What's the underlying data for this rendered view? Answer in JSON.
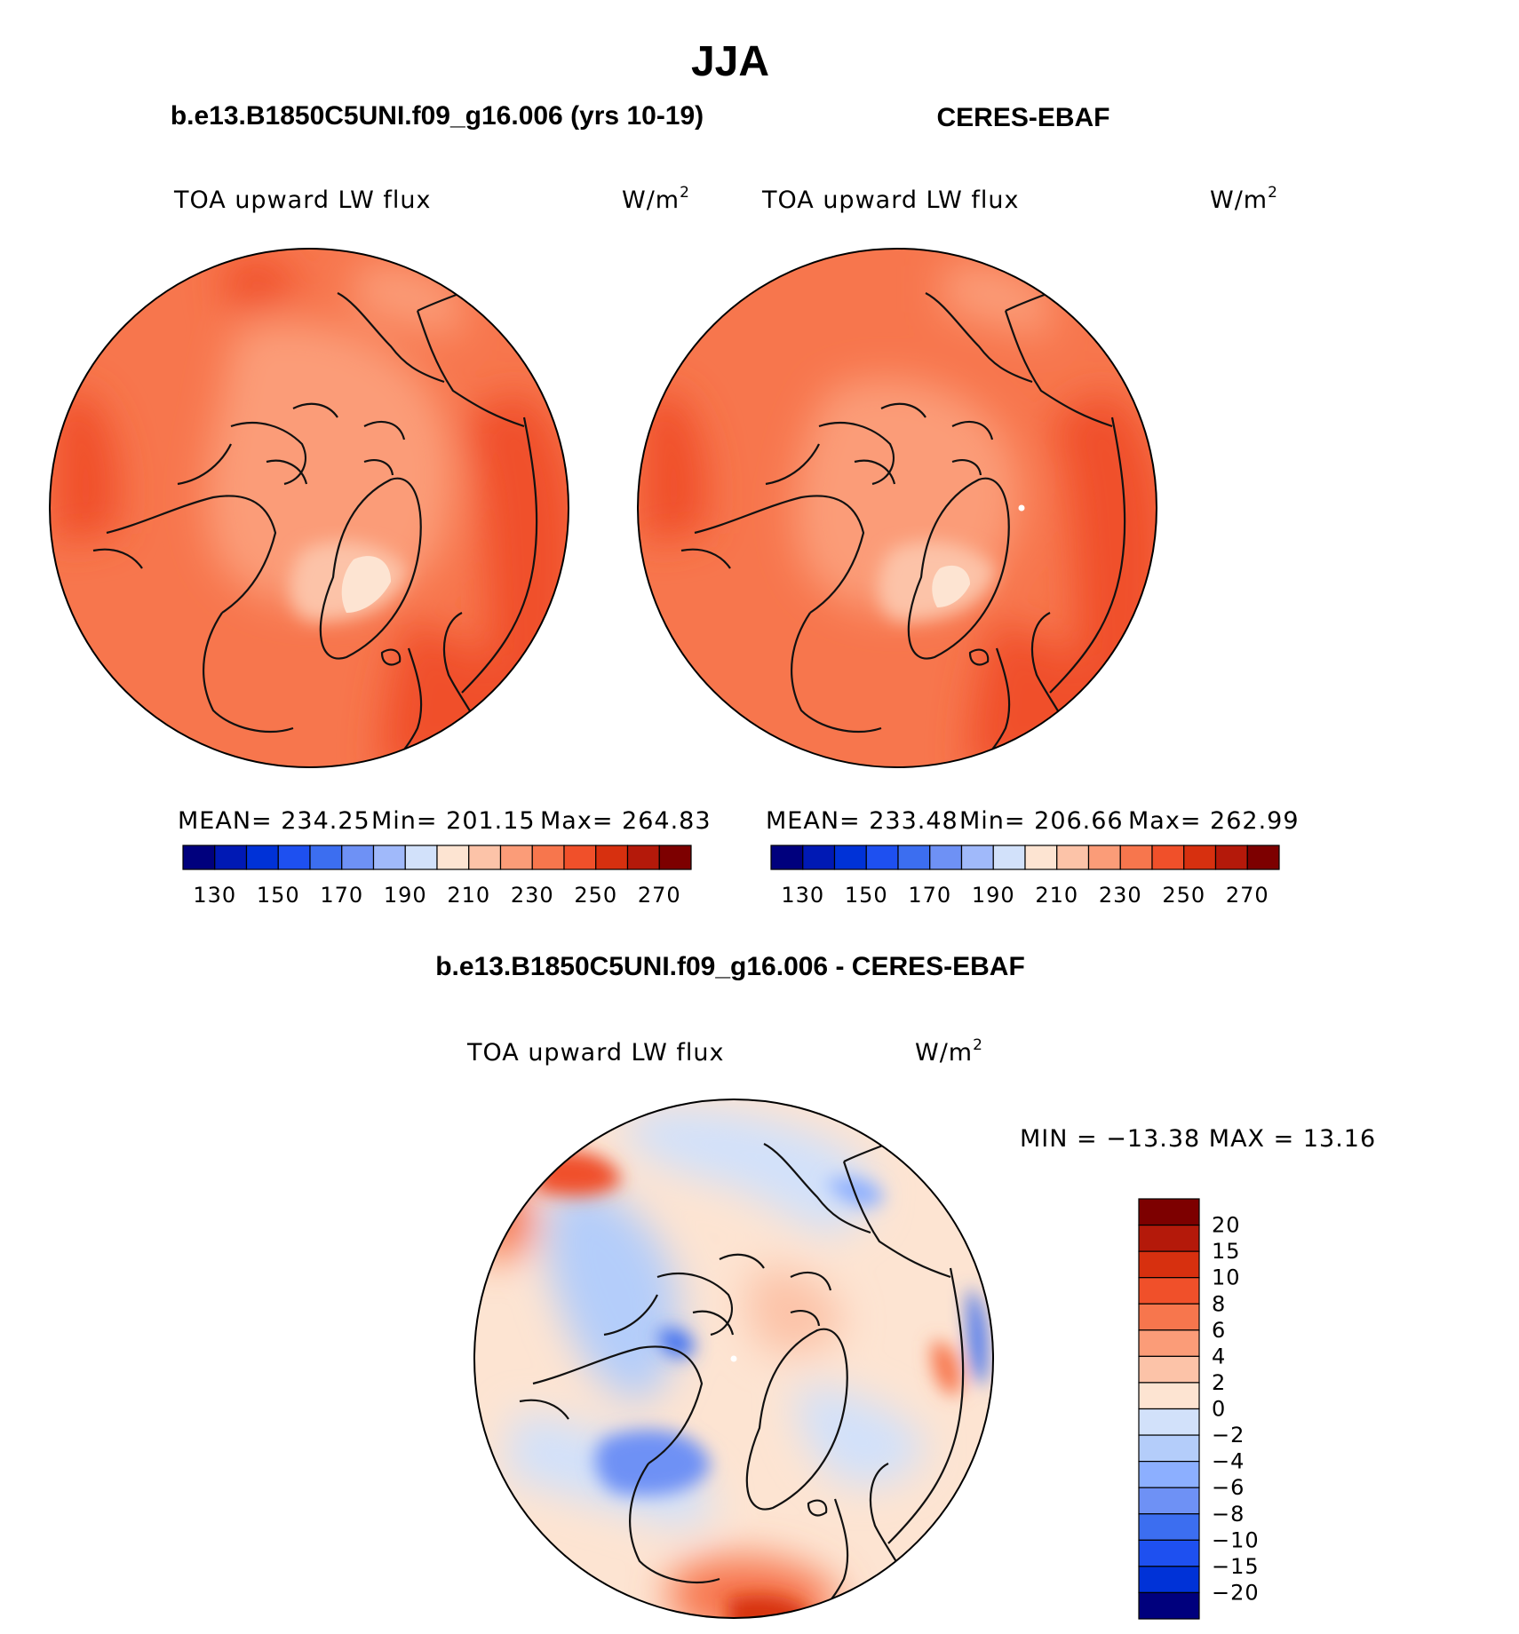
{
  "figure": {
    "season": "JJA",
    "model_title": "b.e13.B1850C5UNI.f09_g16.006 (yrs 10-19)",
    "obs_title": "CERES-EBAF",
    "diff_title": "b.e13.B1850C5UNI.f09_g16.006 - CERES-EBAF"
  },
  "chart_data": [
    {
      "type": "heatmap",
      "projection": "north-polar-stereographic",
      "variable": "TOA upward LW flux",
      "units": "W/m",
      "units_exponent": "2",
      "stats": {
        "mean_label": "MEAN=",
        "mean": "234.25",
        "min_label": "Min=",
        "min": "201.15",
        "max_label": "Max=",
        "max": "264.83"
      },
      "colorbar": {
        "orientation": "horizontal",
        "levels": [
          130,
          140,
          150,
          160,
          170,
          180,
          190,
          200,
          210,
          220,
          230,
          240,
          250,
          260,
          270
        ],
        "tick_labels": [
          "130",
          "150",
          "170",
          "190",
          "210",
          "230",
          "250",
          "270"
        ],
        "colors": [
          "#00007d",
          "#0019b4",
          "#0032d7",
          "#1e50f0",
          "#3c6ef0",
          "#6e91f5",
          "#a0b9fa",
          "#d2e1fa",
          "#fde4d2",
          "#fcc3a8",
          "#fb9c78",
          "#f7764d",
          "#f0502a",
          "#d7300f",
          "#b4190a",
          "#7d0000"
        ]
      }
    },
    {
      "type": "heatmap",
      "projection": "north-polar-stereographic",
      "variable": "TOA upward LW flux",
      "units": "W/m",
      "units_exponent": "2",
      "stats": {
        "mean_label": "MEAN=",
        "mean": "233.48",
        "min_label": "Min=",
        "min": "206.66",
        "max_label": "Max=",
        "max": "262.99"
      },
      "colorbar": {
        "orientation": "horizontal",
        "levels": [
          130,
          140,
          150,
          160,
          170,
          180,
          190,
          200,
          210,
          220,
          230,
          240,
          250,
          260,
          270
        ],
        "tick_labels": [
          "130",
          "150",
          "170",
          "190",
          "210",
          "230",
          "250",
          "270"
        ],
        "colors": [
          "#00007d",
          "#0019b4",
          "#0032d7",
          "#1e50f0",
          "#3c6ef0",
          "#6e91f5",
          "#a0b9fa",
          "#d2e1fa",
          "#fde4d2",
          "#fcc3a8",
          "#fb9c78",
          "#f7764d",
          "#f0502a",
          "#d7300f",
          "#b4190a",
          "#7d0000"
        ]
      }
    },
    {
      "type": "heatmap",
      "projection": "north-polar-stereographic",
      "variable": "TOA upward LW flux",
      "units": "W/m",
      "units_exponent": "2",
      "stats": {
        "min_label": "MIN =",
        "min": "−13.38",
        "max_label": "MAX =",
        "max": "13.16"
      },
      "colorbar": {
        "orientation": "vertical",
        "tick_labels": [
          "20",
          "15",
          "10",
          "8",
          "6",
          "4",
          "2",
          "0",
          "−2",
          "−4",
          "−6",
          "−8",
          "−10",
          "−15",
          "−20"
        ],
        "colors": [
          "#7d0000",
          "#b4190a",
          "#d7300f",
          "#f0502a",
          "#f7764d",
          "#fb9c78",
          "#fcc3a8",
          "#fde4d2",
          "#d2e1fa",
          "#b4cdfa",
          "#8cafff",
          "#6e91f5",
          "#3c6ef0",
          "#1e50f0",
          "#0032d7",
          "#00007d"
        ]
      }
    }
  ]
}
